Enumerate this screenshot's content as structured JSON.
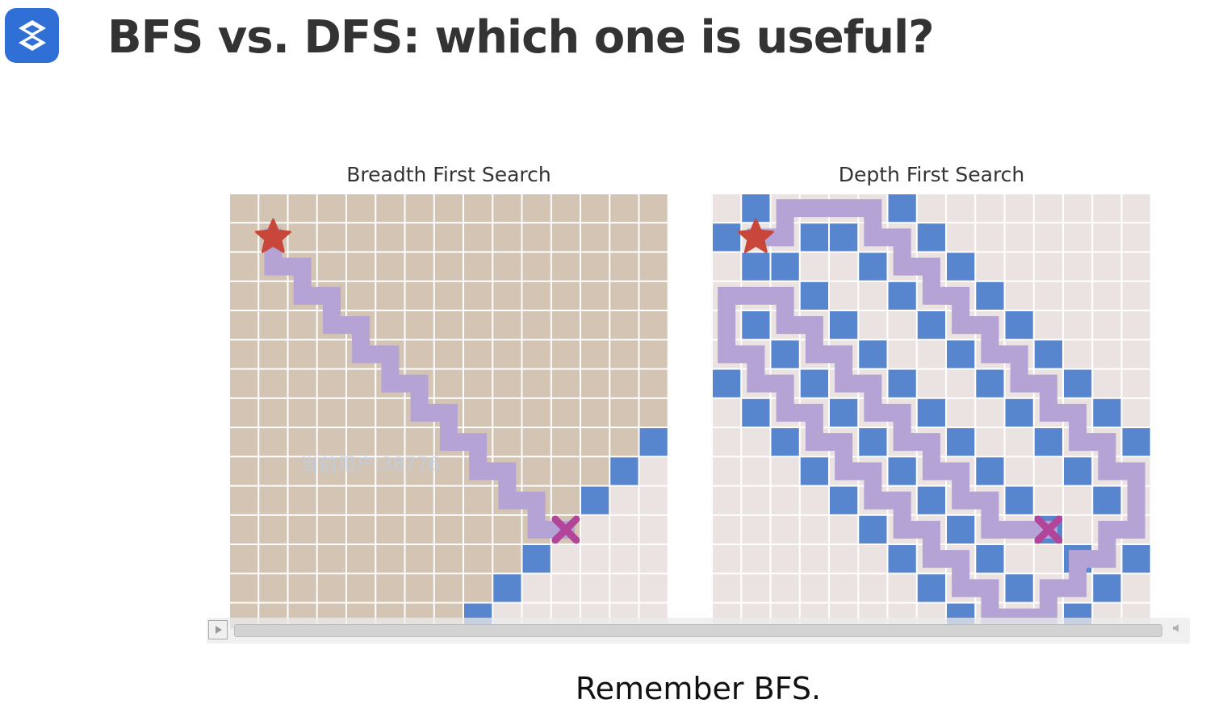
{
  "slide": {
    "title": "BFS vs. DFS: which one is useful?",
    "caption": "Remember BFS.",
    "logo_icon": "s-logo-icon",
    "watermark": "当前用户:38776"
  },
  "panels": {
    "bfs": {
      "label": "Breadth First Search",
      "explored_color": "#d3c4b4",
      "unexplored_color": "#eae3e1",
      "wall_color": "#5786cf",
      "path_color": "#b4a3d4",
      "start_icon": "star-icon",
      "goal_icon": "x-mark-icon"
    },
    "dfs": {
      "label": "Depth First Search",
      "explored_color": "#d3c4b4",
      "unexplored_color": "#eae3e1",
      "wall_color": "#5786cf",
      "path_color": "#b4a3d4",
      "start_icon": "star-icon",
      "goal_icon": "x-mark-icon"
    }
  },
  "player": {
    "play_icon": "play-icon",
    "volume_icon": "volume-icon"
  }
}
